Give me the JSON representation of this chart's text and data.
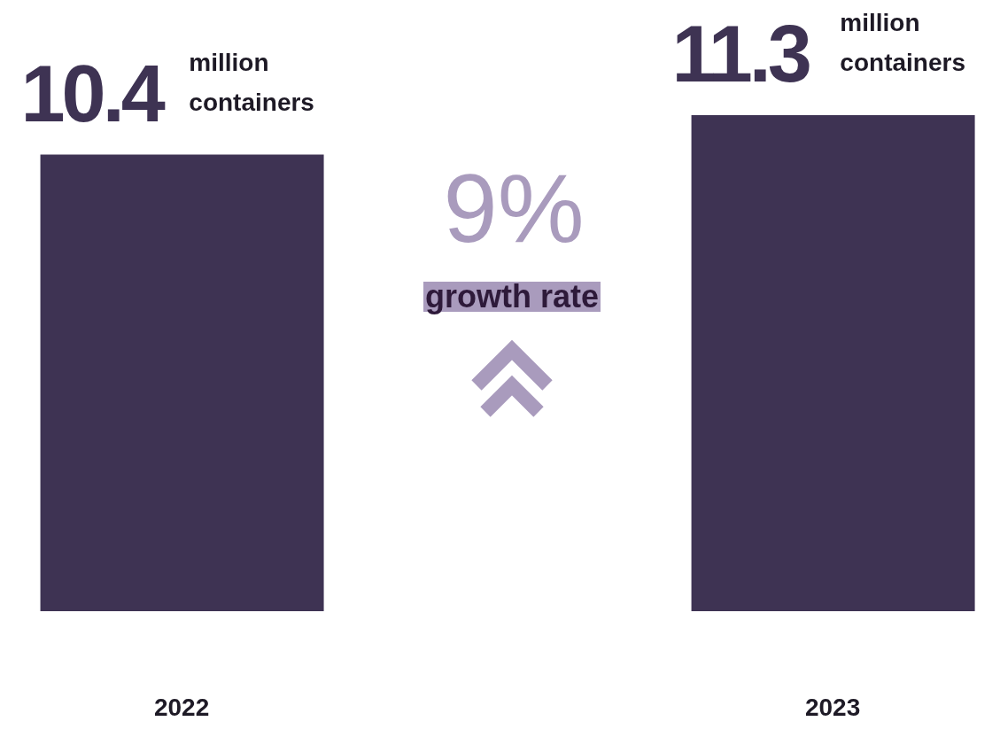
{
  "chart_data": {
    "type": "bar",
    "categories": [
      "2022",
      "2023"
    ],
    "values": [
      10.4,
      11.3
    ],
    "color": "#3e3353",
    "value_labels": [
      "10.4 million containers",
      "11.3 million containers"
    ],
    "annotations": [
      "9%",
      "growth rate"
    ]
  }
}
